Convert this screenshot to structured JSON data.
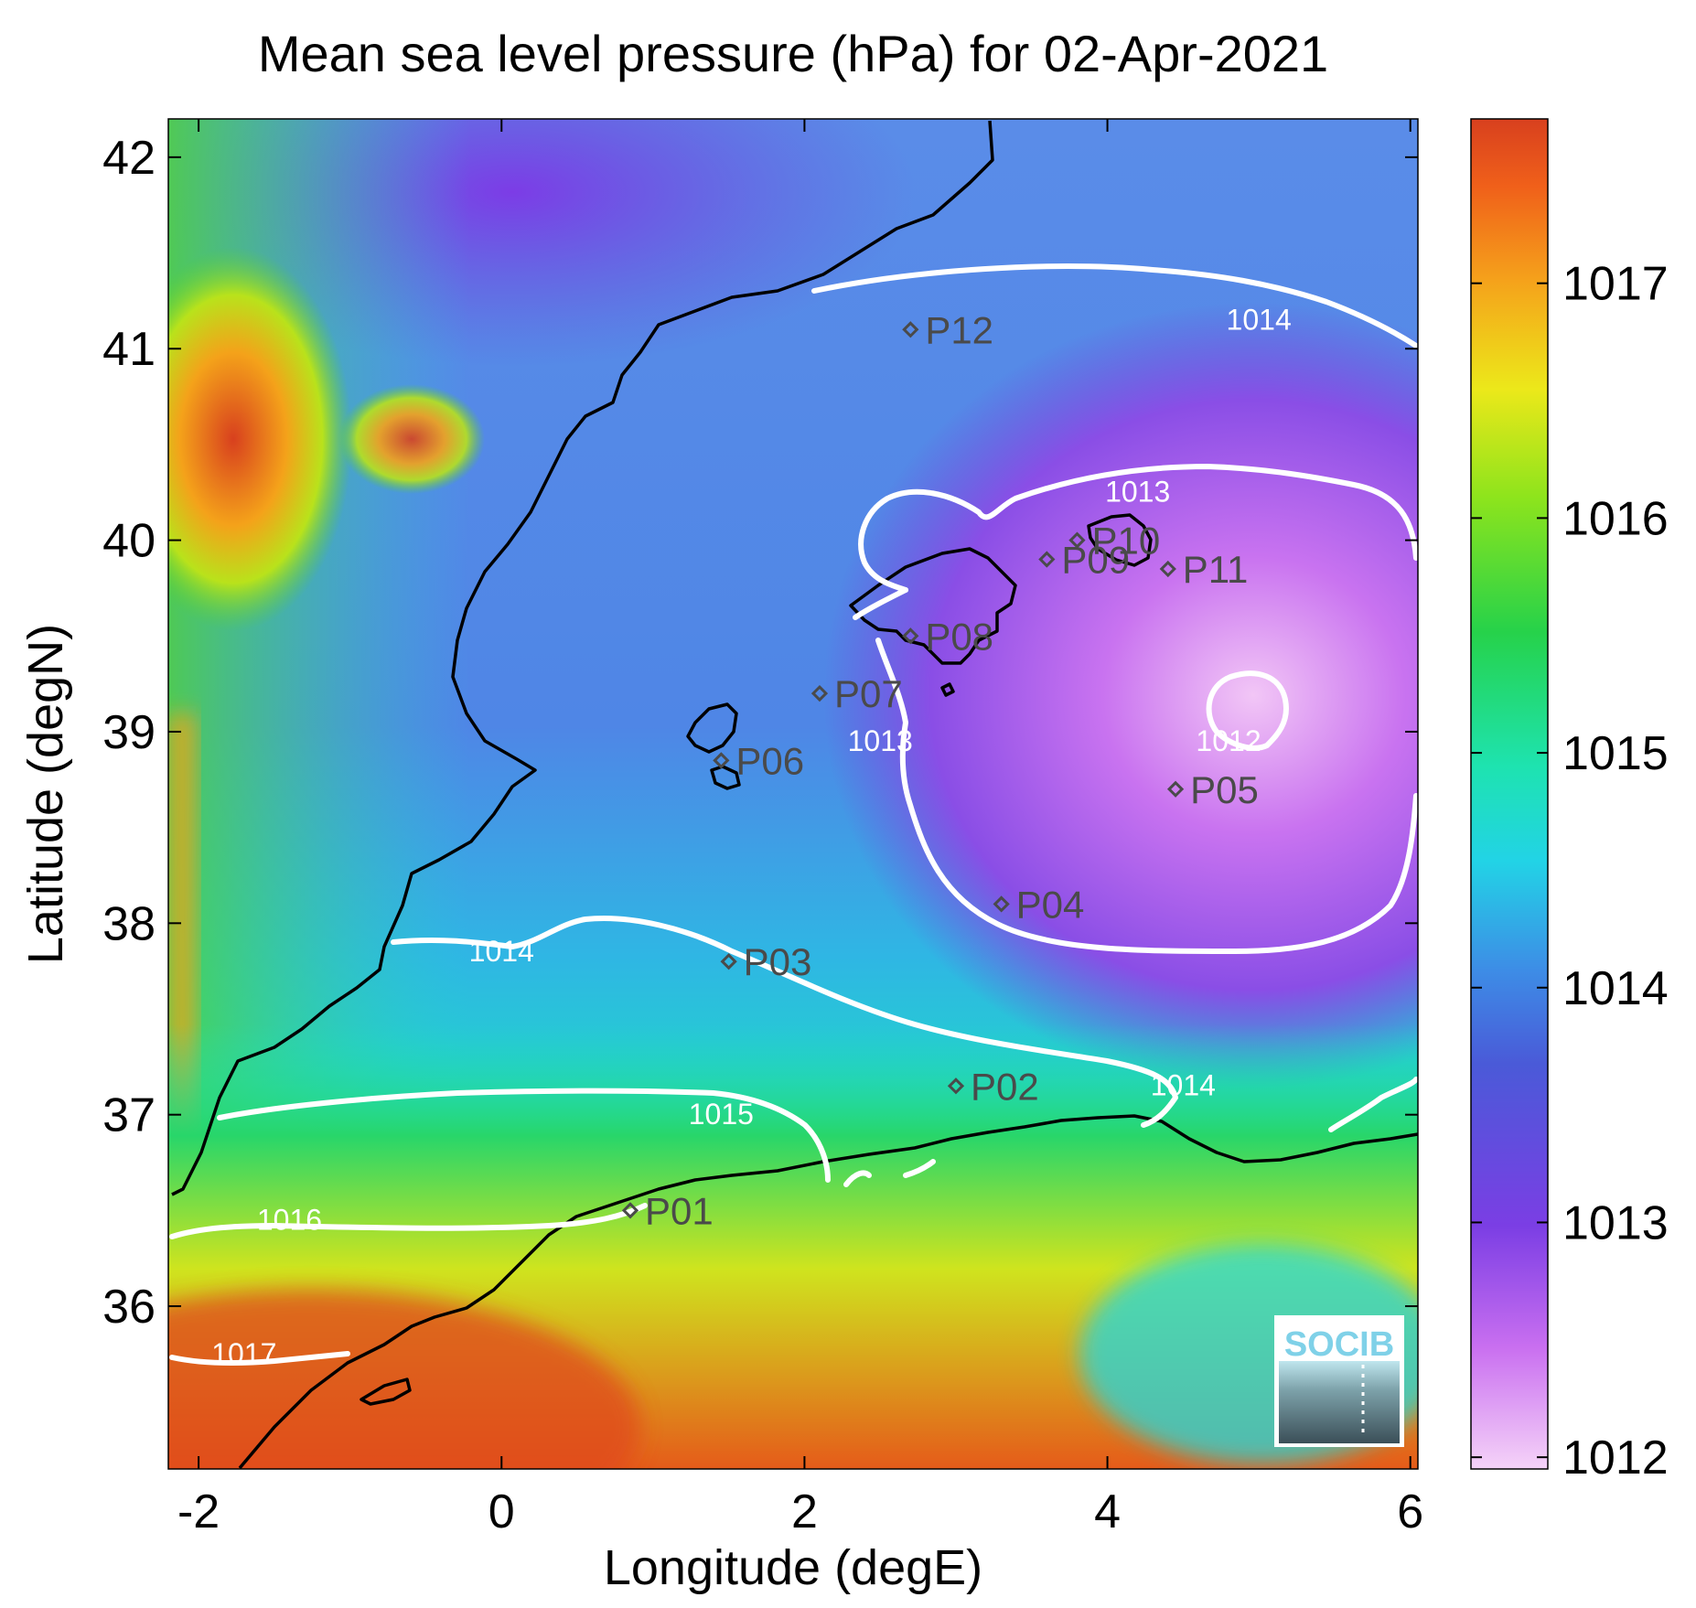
{
  "title": "Mean sea level pressure (hPa) for 02-Apr-2021",
  "xlabel": "Longitude (degE)",
  "ylabel": "Latitude (degN)",
  "logo_text": "SOCIB",
  "chart_data": {
    "type": "heatmap",
    "title": "Mean sea level pressure (hPa) for 02-Apr-2021",
    "xlabel": "Longitude (degE)",
    "ylabel": "Latitude (degN)",
    "xlim": [
      -2.2,
      6.05
    ],
    "ylim": [
      35.15,
      42.2
    ],
    "x_ticks": [
      -2,
      0,
      2,
      4,
      6
    ],
    "y_ticks": [
      36,
      37,
      38,
      39,
      40,
      41,
      42
    ],
    "colorbar": {
      "range": [
        1011.95,
        1017.7
      ],
      "ticks": [
        1012,
        1013,
        1014,
        1015,
        1016,
        1017
      ]
    },
    "contour_labels": [
      {
        "text": "1014",
        "lon": 5.0,
        "lat": 41.1
      },
      {
        "text": "1013",
        "lon": 4.2,
        "lat": 40.2
      },
      {
        "text": "1013",
        "lon": 2.5,
        "lat": 38.9
      },
      {
        "text": "1012",
        "lon": 4.8,
        "lat": 38.9
      },
      {
        "text": "1014",
        "lon": 0.0,
        "lat": 37.8
      },
      {
        "text": "1014",
        "lon": 4.5,
        "lat": 37.1
      },
      {
        "text": "1015",
        "lon": 1.45,
        "lat": 36.95
      },
      {
        "text": "1016",
        "lon": -1.4,
        "lat": 36.4
      },
      {
        "text": "1017",
        "lon": -1.7,
        "lat": 35.7
      }
    ],
    "points": [
      {
        "name": "P01",
        "lon": 0.85,
        "lat": 36.5
      },
      {
        "name": "P02",
        "lon": 3.0,
        "lat": 37.15
      },
      {
        "name": "P03",
        "lon": 1.5,
        "lat": 37.8
      },
      {
        "name": "P04",
        "lon": 3.3,
        "lat": 38.1
      },
      {
        "name": "P05",
        "lon": 4.45,
        "lat": 38.7
      },
      {
        "name": "P06",
        "lon": 1.45,
        "lat": 38.85
      },
      {
        "name": "P07",
        "lon": 2.1,
        "lat": 39.2
      },
      {
        "name": "P08",
        "lon": 2.7,
        "lat": 39.5
      },
      {
        "name": "P09",
        "lon": 3.6,
        "lat": 39.9
      },
      {
        "name": "P10",
        "lon": 3.8,
        "lat": 40.0
      },
      {
        "name": "P11",
        "lon": 4.4,
        "lat": 39.85
      },
      {
        "name": "P12",
        "lon": 2.7,
        "lat": 41.1
      }
    ]
  }
}
